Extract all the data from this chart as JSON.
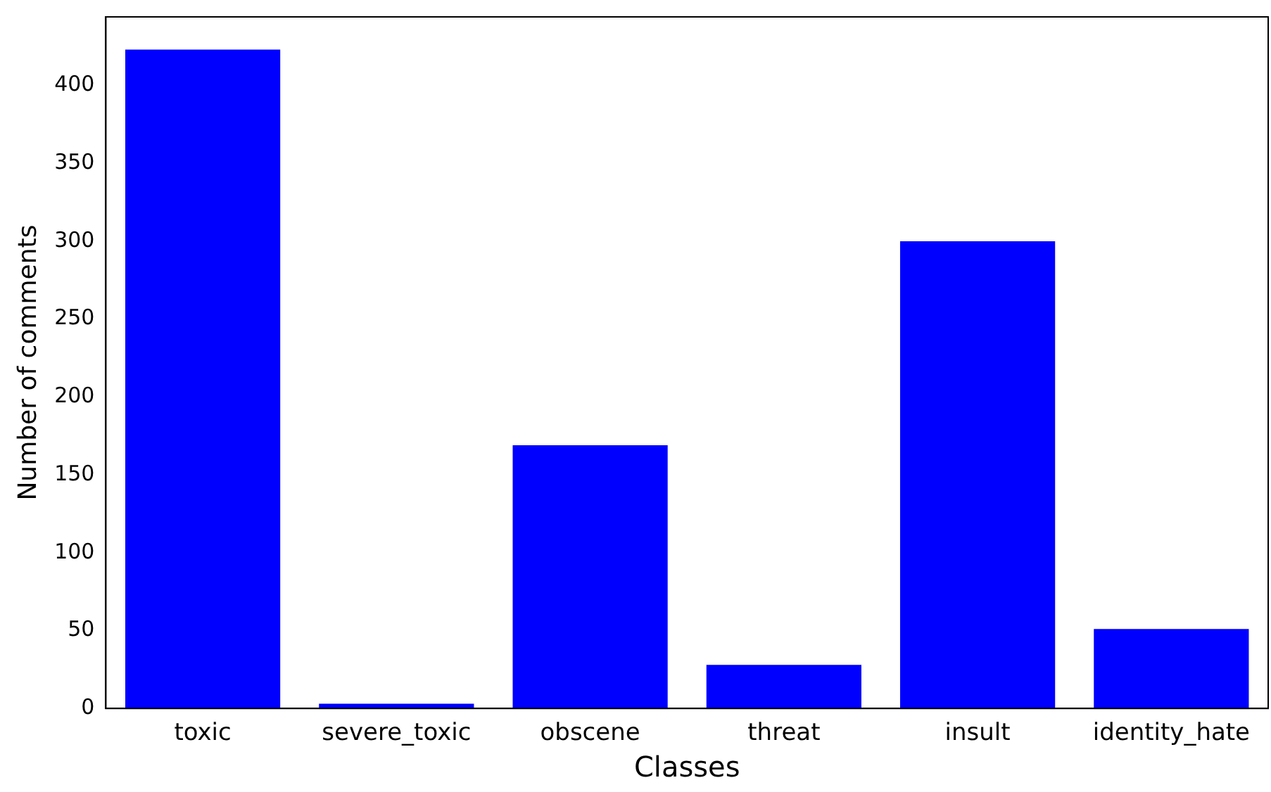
{
  "chart_data": {
    "type": "bar",
    "xlabel": "Classes",
    "ylabel": "Number of comments",
    "categories": [
      "toxic",
      "severe_toxic",
      "obscene",
      "threat",
      "insult",
      "identity_hate"
    ],
    "values": [
      423,
      3,
      169,
      28,
      300,
      51
    ],
    "color": "#0000ff",
    "ylim": [
      0,
      444
    ],
    "yticks": [
      0,
      50,
      100,
      150,
      200,
      250,
      300,
      350,
      400
    ],
    "grid": false,
    "legend": false
  }
}
